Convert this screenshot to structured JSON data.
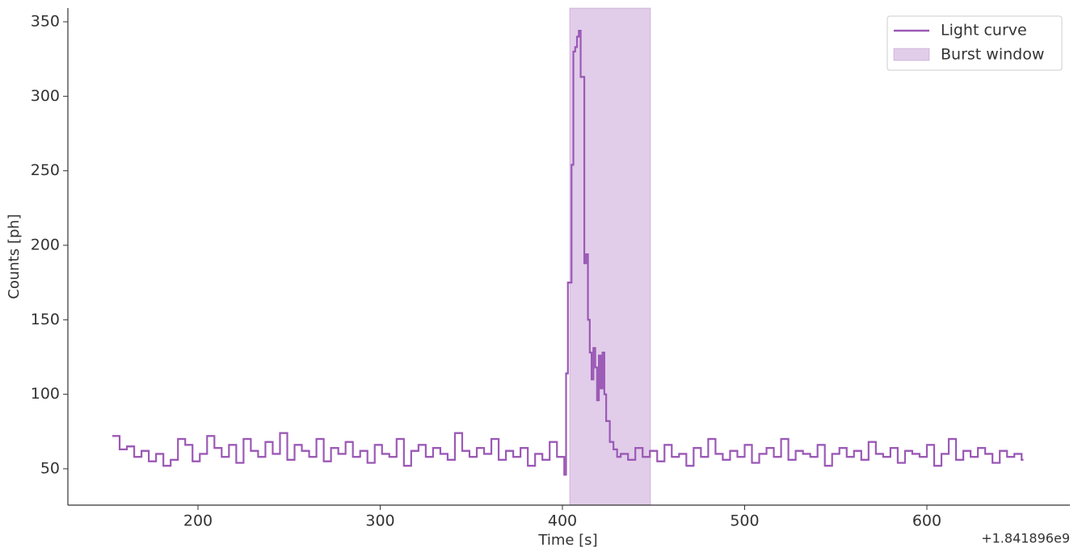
{
  "chart_data": {
    "type": "step",
    "xlabel": "Time [s]",
    "ylabel": "Counts [ph]",
    "x_offset_label": "+1.841896e9",
    "xlim": [
      128.6,
      678.5
    ],
    "ylim": [
      25.6,
      359.2
    ],
    "xticks": [
      200,
      300,
      400,
      500,
      600
    ],
    "yticks": [
      50,
      100,
      150,
      200,
      250,
      300,
      350
    ],
    "legend": "upper right",
    "span": {
      "name": "Burst window",
      "start": 404,
      "end": 448.3,
      "color": "#9b59b6"
    },
    "series": [
      {
        "name": "Light curve",
        "color": "#9b59b6",
        "x": [
          153,
          157,
          161,
          165,
          169,
          173,
          177,
          181,
          185,
          189,
          193,
          197,
          201,
          205,
          209,
          213,
          217,
          221,
          225,
          229,
          233,
          237,
          241,
          245,
          249,
          253,
          257,
          261,
          265,
          269,
          273,
          277,
          281,
          285,
          289,
          293,
          297,
          301,
          305,
          309,
          313,
          317,
          321,
          325,
          329,
          333,
          337,
          341,
          345,
          349,
          353,
          357,
          361,
          365,
          369,
          373,
          377,
          381,
          385,
          389,
          393,
          397,
          401,
          402,
          403,
          405,
          406,
          407,
          408,
          409,
          410,
          412,
          413,
          414,
          415,
          416,
          417,
          418,
          419,
          420,
          421,
          422,
          423,
          424,
          426,
          428,
          430,
          432,
          436,
          440,
          444,
          448,
          452,
          456,
          460,
          464,
          468,
          472,
          476,
          480,
          484,
          488,
          492,
          496,
          500,
          504,
          508,
          512,
          516,
          520,
          524,
          528,
          532,
          536,
          540,
          544,
          548,
          552,
          556,
          560,
          564,
          568,
          572,
          576,
          580,
          584,
          588,
          592,
          596,
          600,
          604,
          608,
          612,
          616,
          620,
          624,
          628,
          632,
          636,
          640,
          644,
          648,
          652
        ],
        "values": [
          72,
          63,
          65,
          58,
          62,
          55,
          60,
          52,
          56,
          70,
          66,
          55,
          60,
          72,
          64,
          58,
          66,
          54,
          70,
          62,
          58,
          68,
          60,
          74,
          56,
          66,
          62,
          58,
          70,
          55,
          64,
          60,
          68,
          58,
          62,
          54,
          66,
          60,
          58,
          70,
          52,
          62,
          66,
          58,
          64,
          60,
          56,
          74,
          62,
          58,
          64,
          60,
          70,
          56,
          62,
          58,
          64,
          52,
          60,
          56,
          68,
          58,
          46,
          114,
          175,
          254,
          330,
          333,
          340,
          344,
          313,
          188,
          194,
          150,
          128,
          110,
          131,
          118,
          96,
          126,
          104,
          128,
          100,
          82,
          68,
          63,
          58,
          60,
          56,
          64,
          58,
          62,
          55,
          66,
          58,
          60,
          52,
          64,
          58,
          70,
          60,
          56,
          62,
          58,
          66,
          54,
          60,
          64,
          58,
          70,
          56,
          62,
          60,
          58,
          66,
          52,
          60,
          64,
          58,
          62,
          56,
          68,
          60,
          58,
          64,
          54,
          62,
          60,
          58,
          66,
          52,
          60,
          70,
          56,
          62,
          58,
          64,
          60,
          54,
          62,
          58,
          60,
          56
        ]
      }
    ]
  }
}
